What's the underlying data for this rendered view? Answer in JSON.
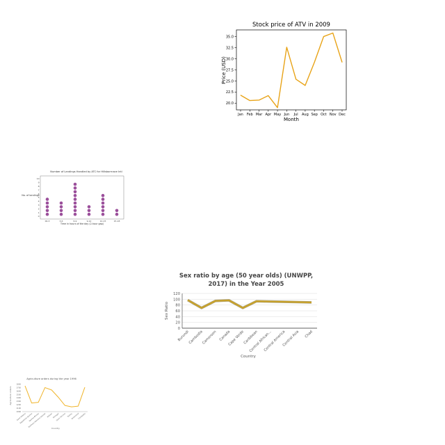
{
  "chart_data": [
    {
      "type": "line",
      "title": "Stock price of ATV in 2009",
      "xlabel": "Month",
      "ylabel": "Price (USD)",
      "categories": [
        "Jan",
        "Feb",
        "Mar",
        "Apr",
        "May",
        "Jun",
        "Jul",
        "Aug",
        "Sep",
        "Oct",
        "Nov",
        "Dec"
      ],
      "values": [
        21.8,
        20.6,
        20.7,
        21.7,
        19.0,
        32.6,
        25.4,
        24.0,
        29.2,
        35.0,
        35.8,
        29.2
      ],
      "ylim": [
        18.5,
        36.5
      ],
      "yticks": [
        "20.0",
        "22.5",
        "25.0",
        "27.5",
        "30.0",
        "32.5",
        "35.0"
      ],
      "color": "#e8a317",
      "grid": false
    },
    {
      "type": "scatter",
      "title": "Number of Landings Handled by ATC for Hillsborrnace Intl",
      "xlabel": "Time in hours of the day (2-hour gap)",
      "ylabel": "No. of landings",
      "categories": [
        "00-3",
        "3-6",
        "6-9",
        "9-12",
        "12-15",
        "15-18"
      ],
      "values": [
        5,
        4,
        9,
        3,
        6,
        2
      ],
      "yticks": [
        "0",
        "1",
        "2",
        "3",
        "4",
        "5",
        "6",
        "7",
        "8",
        "9",
        "10"
      ],
      "ylim": [
        0,
        10
      ],
      "color": "#9b4f9b"
    },
    {
      "type": "line",
      "title_line1": "Sex ratio by age (50 year olds) (UNWPP,",
      "title_line2": "2017) in the Year 2005",
      "xlabel": "Country",
      "ylabel": "Sex Ratio",
      "categories": [
        "Burundi",
        "Cambodia",
        "Cameroon",
        "Canada",
        "Cape Verde",
        "Caribbean",
        "Central African...",
        "Central America",
        "Central Asia",
        "Chad"
      ],
      "values": [
        97,
        70,
        94,
        96,
        70,
        93,
        92,
        91,
        90,
        89
      ],
      "yticks": [
        "0",
        "20",
        "40",
        "60",
        "80",
        "100",
        "120"
      ],
      "ylim": [
        0,
        120
      ],
      "color": "#c9a227",
      "grid": true
    },
    {
      "type": "line",
      "title": "Agriculture orders during the year 1996",
      "xlabel": "Country",
      "ylabel": "Agriculture orders",
      "categories": [
        "Saint Helena",
        "Equatorial Guinea",
        "Guinea-Bissau",
        "Northern Mariana Islands",
        "Malawi",
        "Portugal",
        "Saint Vincent",
        "Turkey",
        "Greenland",
        "Cambodia"
      ],
      "values": [
        1750,
        1250,
        1270,
        1700,
        1630,
        1420,
        1180,
        1140,
        1160,
        1710
      ],
      "yticks": [
        "1000",
        "1100",
        "1200",
        "1300",
        "1400",
        "1500",
        "1600",
        "1700",
        "1800"
      ],
      "ylim": [
        1000,
        1850
      ],
      "color": "#f0b429",
      "grid": false
    }
  ]
}
